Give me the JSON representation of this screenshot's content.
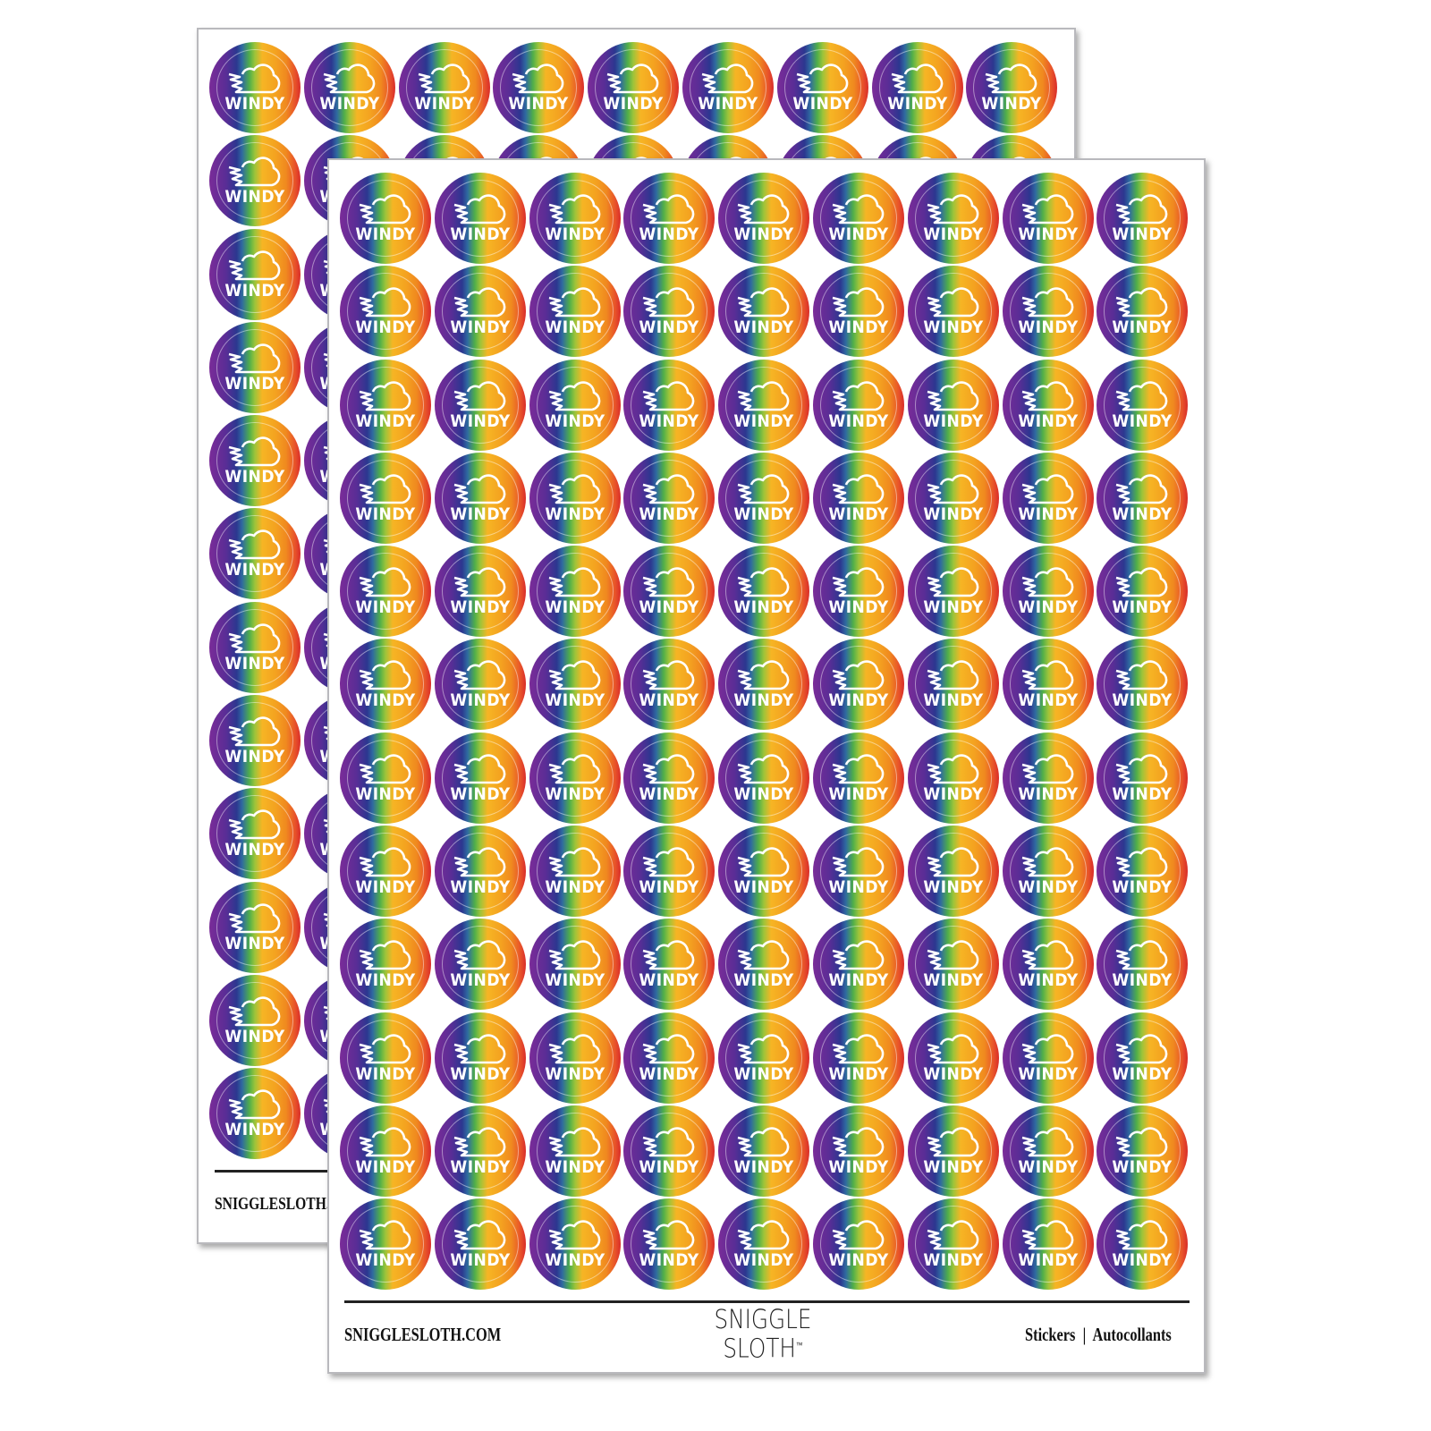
{
  "sticker": {
    "label": "WINDY",
    "icon": "wind-cloud-icon",
    "rows": 12,
    "columns": 9
  },
  "colors": {
    "purple": "#7a2c98",
    "blue": "#2c3790",
    "green": "#4fae4a",
    "yellow": "#f6b524",
    "orange": "#f08a1f",
    "red": "#d92d2a"
  },
  "footer": {
    "website": "SNIGGLESLOTH.COM",
    "back_website": "SNIGGLESLOTH.C",
    "logo_line1": "SNIGGLE",
    "logo_line2": "SLOTH",
    "trademark": "™",
    "right_text": "Stickers  |  Autocollants"
  }
}
